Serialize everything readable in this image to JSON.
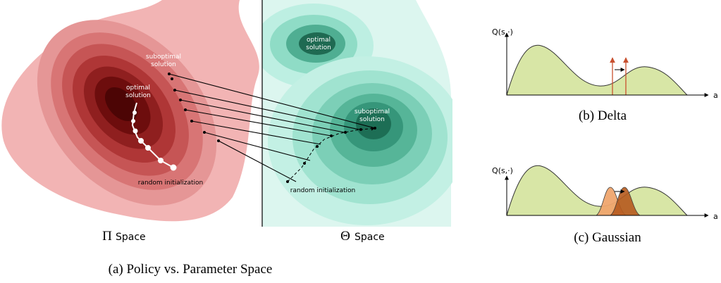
{
  "panel_a": {
    "pi_space": {
      "suboptimal_label": [
        "suboptimal",
        "solution"
      ],
      "optimal_label": [
        "optimal",
        "solution"
      ],
      "init_label": "random initialization",
      "symbol": "Π",
      "axis_label": "Space"
    },
    "theta_space": {
      "optimal_label": [
        "optimal",
        "solution"
      ],
      "suboptimal_label": [
        "suboptimal",
        "solution"
      ],
      "init_label": "random initialization",
      "symbol": "Θ",
      "axis_label": "Space"
    },
    "caption": "(a) Policy vs. Parameter Space"
  },
  "panel_b": {
    "y_label": "Q(s,·)",
    "x_label": "a",
    "caption": "(b) Delta"
  },
  "panel_c": {
    "y_label": "Q(s,·)",
    "x_label": "a",
    "caption": "(c) Gaussian"
  }
}
